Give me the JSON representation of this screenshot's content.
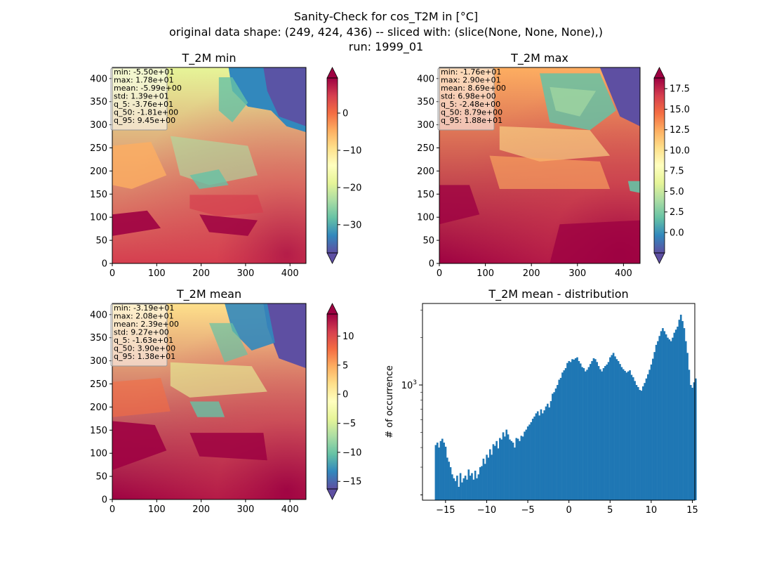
{
  "figure": {
    "suptitle": [
      "Sanity-Check for cos_T2M in [°C]",
      "original data shape: (249, 424, 436) -- sliced with: (slice(None, None, None),)",
      "run: 1999_01"
    ]
  },
  "colormap": {
    "name": "Spectral_r",
    "stops": [
      "#5e4fa2",
      "#3288bd",
      "#66c2a5",
      "#abdda4",
      "#e6f598",
      "#ffffbf",
      "#fee08b",
      "#fdae61",
      "#f46d43",
      "#d53e4f",
      "#9e0142"
    ]
  },
  "chart_data": [
    {
      "type": "heatmap",
      "title": "T_2M min",
      "xticks": [
        "0",
        "100",
        "200",
        "300",
        "400"
      ],
      "yticks": [
        "0",
        "50",
        "100",
        "150",
        "200",
        "250",
        "300",
        "350",
        "400"
      ],
      "xlim": [
        0,
        436
      ],
      "ylim": [
        0,
        424
      ],
      "stats": [
        "min: -5.50e+01",
        "max: 1.78e+01",
        "mean: -5.99e+00",
        "std: 1.39e+01",
        "q_5: -3.76e+01",
        "q_50: -1.81e+00",
        "q_95: 9.45e+00"
      ],
      "colorbar": {
        "range": [
          -37.6,
          9.45
        ],
        "ticks": [
          0,
          -10,
          -20,
          -30
        ],
        "tick_labels": [
          "0",
          "−10",
          "−20",
          "−30"
        ],
        "extend": "both"
      }
    },
    {
      "type": "heatmap",
      "title": "T_2M max",
      "xticks": [
        "0",
        "100",
        "200",
        "300",
        "400"
      ],
      "yticks": [
        "0",
        "50",
        "100",
        "150",
        "200",
        "250",
        "300",
        "350",
        "400"
      ],
      "xlim": [
        0,
        436
      ],
      "ylim": [
        0,
        424
      ],
      "stats": [
        "min: -1.76e+01",
        "max: 2.90e+01",
        "mean: 8.69e+00",
        "std: 6.98e+00",
        "q_5: -2.48e+00",
        "q_50: 8.79e+00",
        "q_95: 1.88e+01"
      ],
      "colorbar": {
        "range": [
          -2.48,
          18.8
        ],
        "ticks": [
          17.5,
          15,
          12.5,
          10,
          7.5,
          5,
          2.5,
          0
        ],
        "tick_labels": [
          "17.5",
          "15.0",
          "12.5",
          "10.0",
          "7.5",
          "5.0",
          "2.5",
          "0.0"
        ],
        "extend": "both"
      }
    },
    {
      "type": "heatmap",
      "title": "T_2M mean",
      "xticks": [
        "0",
        "100",
        "200",
        "300",
        "400"
      ],
      "yticks": [
        "0",
        "50",
        "100",
        "150",
        "200",
        "250",
        "300",
        "350",
        "400"
      ],
      "xlim": [
        0,
        436
      ],
      "ylim": [
        0,
        424
      ],
      "stats": [
        "min: -3.19e+01",
        "max: 2.08e+01",
        "mean: 2.39e+00",
        "std: 9.27e+00",
        "q_5: -1.63e+01",
        "q_50: 3.90e+00",
        "q_95: 1.38e+01"
      ],
      "colorbar": {
        "range": [
          -16.3,
          13.8
        ],
        "ticks": [
          10,
          5,
          0,
          -5,
          -10,
          -15
        ],
        "tick_labels": [
          "10",
          "5",
          "0",
          "−5",
          "−10",
          "−15"
        ],
        "extend": "both"
      }
    },
    {
      "type": "bar",
      "title": "T_2M mean - distribution",
      "ylabel": "# of occurrence",
      "yscale": "log",
      "color": "#1f77b4",
      "xlim": [
        -17.8,
        15.3
      ],
      "ylim": [
        185,
        3300
      ],
      "xticks": [
        -15,
        -10,
        -5,
        0,
        5,
        10,
        15
      ],
      "xtick_labels": [
        "−15",
        "−10",
        "−5",
        "0",
        "5",
        "10",
        "15"
      ],
      "ytick_major": {
        "value": 1000,
        "label": "10",
        "exponent": "3"
      },
      "yticks_minor": [
        200
      ],
      "bin_start": -16.3,
      "bin_width": 0.2,
      "values": [
        415,
        430,
        400,
        440,
        455,
        430,
        405,
        345,
        325,
        300,
        270,
        255,
        245,
        265,
        225,
        275,
        240,
        255,
        265,
        250,
        290,
        265,
        275,
        250,
        285,
        255,
        270,
        300,
        305,
        340,
        315,
        360,
        345,
        390,
        360,
        420,
        410,
        440,
        395,
        460,
        450,
        500,
        470,
        520,
        485,
        450,
        440,
        430,
        400,
        460,
        455,
        440,
        475,
        470,
        505,
        520,
        545,
        560,
        580,
        610,
        630,
        660,
        680,
        640,
        700,
        660,
        690,
        730,
        760,
        720,
        790,
        880,
        900,
        950,
        1000,
        1080,
        1110,
        1200,
        1240,
        1280,
        1380,
        1420,
        1400,
        1460,
        1450,
        1480,
        1500,
        1420,
        1370,
        1300,
        1280,
        1220,
        1250,
        1300,
        1360,
        1420,
        1480,
        1460,
        1400,
        1320,
        1260,
        1220,
        1280,
        1320,
        1350,
        1400,
        1500,
        1550,
        1600,
        1520,
        1460,
        1420,
        1360,
        1300,
        1260,
        1230,
        1200,
        1220,
        1240,
        1160,
        1120,
        1060,
        1000,
        970,
        930,
        920,
        980,
        1030,
        1100,
        1170,
        1250,
        1350,
        1470,
        1620,
        1800,
        1900,
        2050,
        2200,
        2300,
        2200,
        2100,
        2000,
        1950,
        1900,
        2000,
        2150,
        2250,
        2350,
        2600,
        2800,
        2550,
        2300,
        1900,
        1600,
        1250,
        1000,
        960,
        1040,
        1100
      ]
    }
  ]
}
